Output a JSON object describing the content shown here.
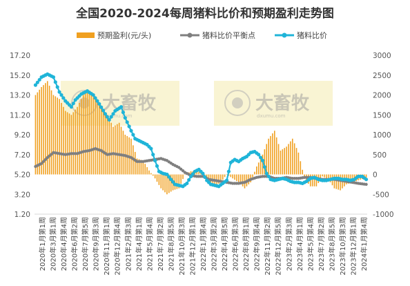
{
  "chart_data": {
    "type": "bar+line",
    "title": "全国2020-2024每周猪料比价和预期盈利走势图",
    "legend": {
      "placement": "top",
      "items": [
        {
          "name": "预期盈利(元/头)",
          "kind": "bar",
          "color": "#f0a020"
        },
        {
          "name": "猪料比价平衡点",
          "kind": "line",
          "color": "#7f7f7f"
        },
        {
          "name": "猪料比价",
          "kind": "line",
          "color": "#1fb4d8"
        }
      ]
    },
    "y_left": {
      "min": 1.2,
      "max": 17.2,
      "ticks": [
        "1.20",
        "3.20",
        "5.20",
        "7.20",
        "9.20",
        "11.20",
        "13.20",
        "15.20",
        "17.20"
      ]
    },
    "y_right": {
      "min": -1000,
      "max": 3000,
      "ticks": [
        "-1000",
        "-500",
        "0",
        "500",
        "1000",
        "1500",
        "2000",
        "2500",
        "3000"
      ]
    },
    "x_tick_labels": [
      "2020年1月第1周",
      "2020年3月第1周",
      "2020年4月第4周",
      "2020年6月第2周",
      "2020年7月第5周",
      "2020年9月第3周",
      "2020年11月第1周",
      "2020年12月第4周",
      "2021年2月第3周",
      "2021年4月第1周",
      "2021年5月第4周",
      "2021年7月第2周",
      "2021年8月第5周",
      "2021年10月第3周",
      "2021年12月第1周",
      "2022年1月第4周",
      "2022年3月第2周",
      "2022年4月第5周",
      "2022年6月第3周",
      "2022年8月第1周",
      "2022年9月第4周",
      "2022年11月第2周",
      "2022年12月第5周",
      "2023年2月第3周",
      "2023年4月第1周",
      "2023年5月第4周",
      "2023年7月第2周",
      "2023年8月第5周",
      "2023年10月第3周",
      "2023年12月第1周",
      "2024年1月第4周"
    ],
    "ratio_keypoints": [
      [
        0,
        14.2
      ],
      [
        3,
        15.0
      ],
      [
        6,
        15.3
      ],
      [
        9,
        15.0
      ],
      [
        12,
        13.5
      ],
      [
        15,
        12.6
      ],
      [
        18,
        12.0
      ],
      [
        20,
        12.7
      ],
      [
        23,
        13.3
      ],
      [
        26,
        13.6
      ],
      [
        29,
        13.2
      ],
      [
        32,
        12.3
      ],
      [
        35,
        11.3
      ],
      [
        37,
        10.7
      ],
      [
        40,
        11.6
      ],
      [
        43,
        12.0
      ],
      [
        45,
        10.9
      ],
      [
        48,
        9.6
      ],
      [
        50,
        8.8
      ],
      [
        53,
        8.5
      ],
      [
        56,
        8.2
      ],
      [
        58,
        7.8
      ],
      [
        60,
        6.6
      ],
      [
        62,
        5.5
      ],
      [
        64,
        5.3
      ],
      [
        66,
        5.2
      ],
      [
        68,
        4.7
      ],
      [
        70,
        4.2
      ],
      [
        72,
        4.1
      ],
      [
        74,
        4.0
      ],
      [
        76,
        4.3
      ],
      [
        78,
        5.0
      ],
      [
        80,
        5.5
      ],
      [
        82,
        5.7
      ],
      [
        84,
        5.3
      ],
      [
        86,
        4.6
      ],
      [
        88,
        4.2
      ],
      [
        90,
        4.1
      ],
      [
        92,
        4.0
      ],
      [
        94,
        4.3
      ],
      [
        96,
        4.6
      ],
      [
        98,
        6.4
      ],
      [
        100,
        6.7
      ],
      [
        102,
        6.5
      ],
      [
        104,
        6.8
      ],
      [
        106,
        7.0
      ],
      [
        108,
        7.4
      ],
      [
        110,
        7.5
      ],
      [
        112,
        7.2
      ],
      [
        114,
        6.6
      ],
      [
        116,
        5.3
      ],
      [
        118,
        4.7
      ],
      [
        120,
        4.6
      ],
      [
        122,
        4.7
      ],
      [
        124,
        4.8
      ],
      [
        126,
        4.7
      ],
      [
        128,
        4.5
      ],
      [
        130,
        4.4
      ],
      [
        132,
        4.4
      ],
      [
        134,
        4.3
      ],
      [
        136,
        4.5
      ],
      [
        138,
        4.8
      ],
      [
        140,
        4.9
      ],
      [
        142,
        4.7
      ],
      [
        144,
        4.6
      ],
      [
        146,
        4.6
      ],
      [
        148,
        4.7
      ],
      [
        150,
        4.8
      ],
      [
        152,
        4.8
      ],
      [
        154,
        4.7
      ],
      [
        156,
        4.7
      ],
      [
        158,
        4.6
      ],
      [
        160,
        4.7
      ],
      [
        162,
        5.0
      ],
      [
        164,
        5.0
      ],
      [
        166,
        4.7
      ]
    ],
    "breakeven_keypoints": [
      [
        0,
        6.0
      ],
      [
        3,
        6.3
      ],
      [
        6,
        6.9
      ],
      [
        9,
        7.4
      ],
      [
        12,
        7.3
      ],
      [
        15,
        7.2
      ],
      [
        18,
        7.3
      ],
      [
        21,
        7.3
      ],
      [
        24,
        7.5
      ],
      [
        27,
        7.6
      ],
      [
        30,
        7.8
      ],
      [
        33,
        7.6
      ],
      [
        36,
        7.2
      ],
      [
        39,
        7.3
      ],
      [
        42,
        7.2
      ],
      [
        45,
        7.1
      ],
      [
        48,
        6.9
      ],
      [
        51,
        6.5
      ],
      [
        54,
        6.5
      ],
      [
        57,
        6.6
      ],
      [
        60,
        6.7
      ],
      [
        63,
        6.8
      ],
      [
        66,
        6.6
      ],
      [
        69,
        6.2
      ],
      [
        72,
        5.9
      ],
      [
        75,
        5.4
      ],
      [
        78,
        5.1
      ],
      [
        81,
        5.0
      ],
      [
        84,
        5.0
      ],
      [
        87,
        4.7
      ],
      [
        90,
        4.6
      ],
      [
        93,
        4.5
      ],
      [
        96,
        4.4
      ],
      [
        99,
        4.3
      ],
      [
        102,
        4.3
      ],
      [
        105,
        4.4
      ],
      [
        108,
        4.7
      ],
      [
        111,
        4.9
      ],
      [
        114,
        5.0
      ],
      [
        117,
        5.0
      ],
      [
        120,
        4.8
      ],
      [
        123,
        4.8
      ],
      [
        126,
        4.9
      ],
      [
        129,
        4.8
      ],
      [
        132,
        4.8
      ],
      [
        135,
        4.9
      ],
      [
        138,
        4.9
      ],
      [
        141,
        4.8
      ],
      [
        144,
        4.7
      ],
      [
        147,
        4.7
      ],
      [
        150,
        4.7
      ],
      [
        153,
        4.6
      ],
      [
        156,
        4.5
      ],
      [
        159,
        4.4
      ],
      [
        162,
        4.3
      ],
      [
        166,
        4.2
      ]
    ],
    "profit_keypoints": [
      [
        0,
        2000
      ],
      [
        3,
        2200
      ],
      [
        6,
        2350
      ],
      [
        9,
        2000
      ],
      [
        12,
        1900
      ],
      [
        15,
        1600
      ],
      [
        18,
        1500
      ],
      [
        21,
        1700
      ],
      [
        24,
        2000
      ],
      [
        26,
        2100
      ],
      [
        30,
        1900
      ],
      [
        33,
        1700
      ],
      [
        36,
        1500
      ],
      [
        39,
        1200
      ],
      [
        42,
        1300
      ],
      [
        45,
        1000
      ],
      [
        48,
        900
      ],
      [
        51,
        400
      ],
      [
        54,
        350
      ],
      [
        57,
        100
      ],
      [
        60,
        -100
      ],
      [
        63,
        -350
      ],
      [
        66,
        -500
      ],
      [
        69,
        -400
      ],
      [
        72,
        -350
      ],
      [
        75,
        0
      ],
      [
        78,
        80
      ],
      [
        81,
        80
      ],
      [
        84,
        50
      ],
      [
        87,
        -150
      ],
      [
        90,
        -300
      ],
      [
        93,
        -200
      ],
      [
        96,
        0
      ],
      [
        99,
        -100
      ],
      [
        102,
        -200
      ],
      [
        105,
        -350
      ],
      [
        108,
        -200
      ],
      [
        111,
        200
      ],
      [
        114,
        500
      ],
      [
        117,
        900
      ],
      [
        120,
        1100
      ],
      [
        123,
        600
      ],
      [
        126,
        700
      ],
      [
        129,
        900
      ],
      [
        132,
        550
      ],
      [
        135,
        -100
      ],
      [
        138,
        -300
      ],
      [
        141,
        -300
      ],
      [
        144,
        -50
      ],
      [
        147,
        -120
      ],
      [
        150,
        -350
      ],
      [
        153,
        -400
      ],
      [
        156,
        -250
      ],
      [
        159,
        -200
      ],
      [
        162,
        -150
      ],
      [
        166,
        -80
      ]
    ],
    "weeks": 167
  }
}
